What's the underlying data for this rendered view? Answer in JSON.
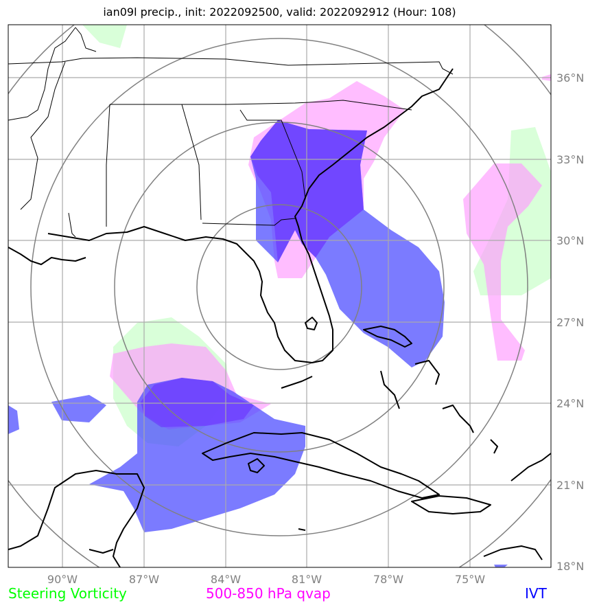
{
  "title": "ian09l precip., init: 2022092500, valid: 2022092912 (Hour: 108)",
  "lon_labels": [
    "90°W",
    "87°W",
    "84°W",
    "81°W",
    "78°W",
    "75°W"
  ],
  "lat_labels": [
    "36°N",
    "33°N",
    "30°N",
    "27°N",
    "24°N",
    "21°N",
    "18°N"
  ],
  "legend": [
    {
      "label": "Steering Vorticity",
      "color": "#00ff00"
    },
    {
      "label": "500-850 hPa qvap",
      "color": "#ff00ff"
    },
    {
      "label": "IVT",
      "color": "#0000ff"
    }
  ],
  "colors": {
    "vorticity_fill": "#ccffcc",
    "qvap_fill": "#ff99ff",
    "ivt_fill": "#5555ff",
    "grid": "#999999",
    "range_rings": "#808080",
    "coastlines": "#000000"
  }
}
